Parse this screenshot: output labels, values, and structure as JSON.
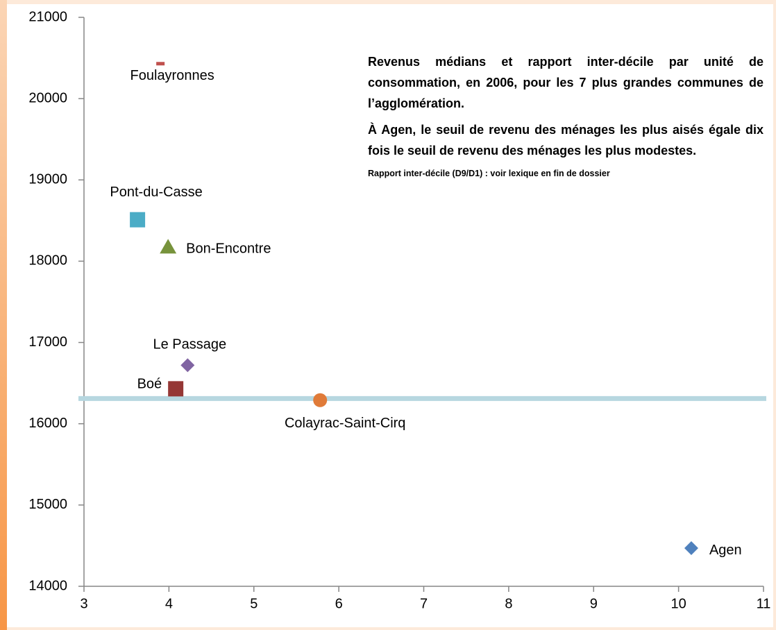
{
  "chart_data": {
    "type": "scatter",
    "annotations": [
      "Revenus médians et rapport inter-décile par unité de consommation, en 2006, pour les 7 plus grandes communes de l’agglomération.",
      "À Agen, le seuil de revenu des ménages les plus aisés égale dix fois le seuil de revenu des ménages les plus modestes.",
      "Rapport inter-décile (D9/D1) : voir lexique en fin de dossier"
    ],
    "series": [
      {
        "name": "Foulayronnes",
        "color": "#c0504d",
        "marker": "dash",
        "x": 3.9,
        "y": 20430
      },
      {
        "name": "Pont-du-Casse",
        "color": "#4bacc6",
        "marker": "square",
        "x": 3.63,
        "y": 18510
      },
      {
        "name": "Bon-Encontre",
        "color": "#77933c",
        "marker": "triangle",
        "x": 3.99,
        "y": 18180
      },
      {
        "name": "Le Passage",
        "color": "#8064a2",
        "marker": "diamond",
        "x": 4.22,
        "y": 16720
      },
      {
        "name": "Boé",
        "color": "#953735",
        "marker": "square",
        "x": 4.08,
        "y": 16430
      },
      {
        "name": "Colayrac-Saint-Cirq",
        "color": "#e07b39",
        "marker": "circle",
        "x": 5.78,
        "y": 16290
      },
      {
        "name": "Agen",
        "color": "#4f81bd",
        "marker": "diamond",
        "x": 10.15,
        "y": 14470
      }
    ],
    "hline": {
      "value": 16310,
      "color": "#b7d7e0"
    },
    "xlim": [
      3,
      11
    ],
    "xticks": [
      3,
      4,
      5,
      6,
      7,
      8,
      9,
      10,
      11
    ],
    "ylim": [
      14000,
      21000
    ],
    "yticks": [
      14000,
      15000,
      16000,
      17000,
      18000,
      19000,
      20000,
      21000
    ],
    "grid": false
  }
}
